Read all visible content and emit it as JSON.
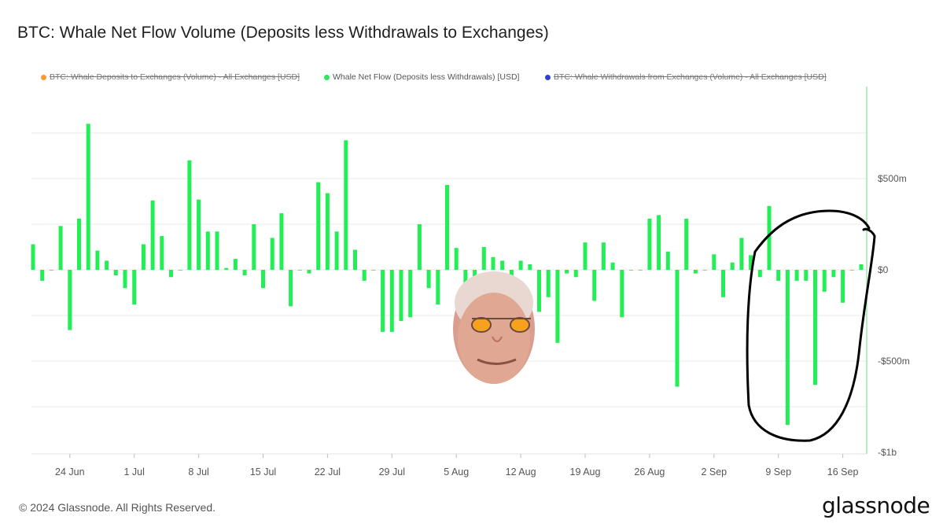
{
  "title": "BTC: Whale Net Flow Volume (Deposits less Withdrawals to Exchanges)",
  "footer": "© 2024 Glassnode. All Rights Reserved.",
  "brand": "glassnode",
  "legend": [
    {
      "label": "BTC: Whale Deposits to Exchanges (Volume) - All Exchanges [USD]",
      "color": "#f39c34",
      "state": "off"
    },
    {
      "label": "Whale Net Flow (Deposits less Withdrawals) [USD]",
      "color": "#2ee85b",
      "state": "on"
    },
    {
      "label": "BTC: Whale Withdrawals from Exchanges (Volume) - All Exchanges [USD]",
      "color": "#2b3fd6",
      "state": "off"
    }
  ],
  "colors": {
    "bar": "#22ee55",
    "grid": "#e8e8e8",
    "axis": "#9be8a8",
    "annotation": "#000000"
  },
  "chart_data": {
    "type": "bar",
    "x_ticks": [
      "24 Jun",
      "1 Jul",
      "8 Jul",
      "15 Jul",
      "22 Jul",
      "29 Jul",
      "5 Aug",
      "12 Aug",
      "19 Aug",
      "26 Aug",
      "2 Sep",
      "9 Sep",
      "16 Sep"
    ],
    "y_ticks": [
      "$500m",
      "$0",
      "-$500m",
      "-$1b"
    ],
    "ylim": [
      -1000,
      1000
    ],
    "y_unit": "million USD",
    "grid": true,
    "legend_position": "top",
    "start": "20 Jun",
    "end": "19 Sep",
    "series": [
      {
        "name": "Whale Net Flow (Deposits less Withdrawals) [USD]",
        "values": [
          140,
          -60,
          0,
          240,
          -330,
          280,
          800,
          105,
          50,
          -30,
          -100,
          -190,
          140,
          380,
          185,
          -40,
          0,
          600,
          385,
          210,
          210,
          10,
          60,
          -30,
          250,
          -100,
          175,
          310,
          -200,
          0,
          -20,
          480,
          420,
          210,
          710,
          110,
          -60,
          0,
          -340,
          -340,
          -280,
          -260,
          250,
          -100,
          -190,
          465,
          120,
          -120,
          -210,
          125,
          70,
          50,
          -150,
          50,
          30,
          -230,
          -150,
          -400,
          -20,
          -40,
          150,
          -170,
          150,
          40,
          -260,
          0,
          0,
          280,
          300,
          100,
          -640,
          280,
          -20,
          0,
          85,
          -150,
          40,
          175,
          80,
          -40,
          350,
          -60,
          -850,
          -60,
          -60,
          -630,
          -120,
          -40,
          -180,
          0,
          30
        ]
      }
    ]
  }
}
